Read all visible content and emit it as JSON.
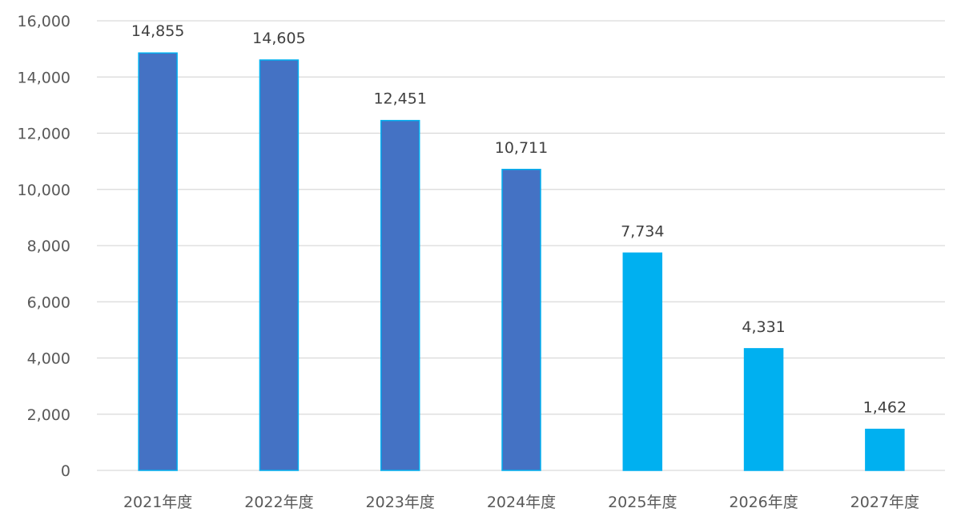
{
  "chart_data": {
    "type": "bar",
    "title": "",
    "xlabel": "",
    "ylabel": "",
    "ylim": [
      0,
      16000
    ],
    "yticks": [
      0,
      2000,
      4000,
      6000,
      8000,
      10000,
      12000,
      14000,
      16000
    ],
    "ytick_labels": [
      "0",
      "2,000",
      "4,000",
      "6,000",
      "8,000",
      "10,000",
      "12,000",
      "14,000",
      "16,000"
    ],
    "grid": true,
    "categories": [
      "2021年度",
      "2022年度",
      "2023年度",
      "2024年度",
      "2025年度",
      "2026年度",
      "2027年度"
    ],
    "values": [
      14855,
      14605,
      12451,
      10711,
      7734,
      4331,
      1462
    ],
    "data_labels": [
      "14,855",
      "14,605",
      "12,451",
      "10,711",
      "7,734",
      "4,331",
      "1,462"
    ],
    "bar_colors": [
      "#4472C4",
      "#4472C4",
      "#4472C4",
      "#4472C4",
      "#00B0F0",
      "#00B0F0",
      "#00B0F0"
    ],
    "bar_border_color": "#00B0F0"
  }
}
